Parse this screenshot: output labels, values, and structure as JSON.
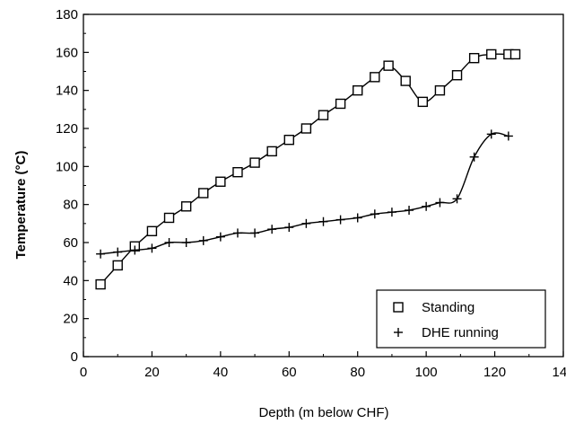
{
  "chart_data": {
    "type": "scatter",
    "title": "",
    "xlabel": "Depth (m below CHF)",
    "ylabel": "Temperature (°C)",
    "xlim": [
      0,
      140
    ],
    "ylim": [
      0,
      180
    ],
    "xticks": [
      0,
      20,
      40,
      60,
      80,
      100,
      120,
      140
    ],
    "yticks": [
      0,
      20,
      40,
      60,
      80,
      100,
      120,
      140,
      160,
      180
    ],
    "grid": false,
    "legend_position": "bottom-right",
    "series": [
      {
        "name": "Standing",
        "marker": "square-open",
        "color": "#000000",
        "points": [
          [
            5,
            38
          ],
          [
            10,
            48
          ],
          [
            15,
            58
          ],
          [
            20,
            66
          ],
          [
            25,
            73
          ],
          [
            30,
            79
          ],
          [
            35,
            86
          ],
          [
            40,
            92
          ],
          [
            45,
            97
          ],
          [
            50,
            102
          ],
          [
            55,
            108
          ],
          [
            60,
            114
          ],
          [
            65,
            120
          ],
          [
            70,
            127
          ],
          [
            75,
            133
          ],
          [
            80,
            140
          ],
          [
            85,
            147
          ],
          [
            89,
            153
          ],
          [
            94,
            145
          ],
          [
            99,
            134
          ],
          [
            104,
            140
          ],
          [
            109,
            148
          ],
          [
            114,
            157
          ],
          [
            119,
            159
          ],
          [
            124,
            159
          ],
          [
            126,
            159
          ]
        ]
      },
      {
        "name": "DHE running",
        "marker": "plus",
        "color": "#000000",
        "points": [
          [
            5,
            54
          ],
          [
            10,
            55
          ],
          [
            15,
            56
          ],
          [
            20,
            57
          ],
          [
            25,
            60
          ],
          [
            30,
            60
          ],
          [
            35,
            61
          ],
          [
            40,
            63
          ],
          [
            45,
            65
          ],
          [
            50,
            65
          ],
          [
            55,
            67
          ],
          [
            60,
            68
          ],
          [
            65,
            70
          ],
          [
            70,
            71
          ],
          [
            75,
            72
          ],
          [
            80,
            73
          ],
          [
            85,
            75
          ],
          [
            90,
            76
          ],
          [
            95,
            77
          ],
          [
            100,
            79
          ],
          [
            104,
            81
          ],
          [
            109,
            83
          ],
          [
            114,
            105
          ],
          [
            119,
            117
          ],
          [
            124,
            116
          ]
        ]
      }
    ]
  }
}
